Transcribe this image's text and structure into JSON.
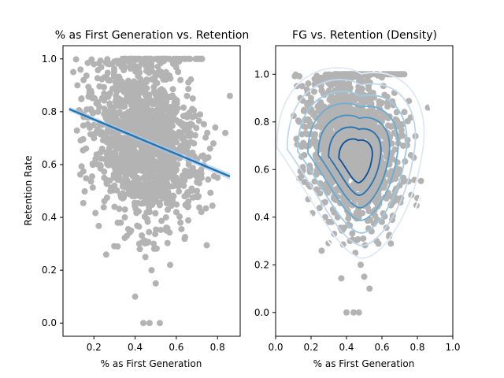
{
  "chart_data": [
    {
      "type": "scatter",
      "title": "% as First Generation vs. Retention",
      "xlabel": "% as First Generation",
      "ylabel": "Retention Rate",
      "xlim": [
        0.05,
        0.91
      ],
      "ylim": [
        -0.05,
        1.05
      ],
      "xticks": [
        "0.2",
        "0.4",
        "0.6",
        "0.8"
      ],
      "xtick_values": [
        0.2,
        0.4,
        0.6,
        0.8
      ],
      "yticks": [
        "0.0",
        "0.2",
        "0.4",
        "0.6",
        "0.8",
        "1.0"
      ],
      "ytick_values": [
        0.0,
        0.2,
        0.4,
        0.6,
        0.8,
        1.0
      ],
      "point_color": "#b3b3b3",
      "line_color": "#1f77b4",
      "grid": false,
      "regression_line": {
        "x": [
          0.08,
          0.86
        ],
        "y": [
          0.81,
          0.555
        ]
      },
      "points": {
        "x": [
          0.1,
          0.12,
          0.14,
          0.15,
          0.18,
          0.2,
          0.22,
          0.24,
          0.25,
          0.28,
          0.3,
          0.32,
          0.34,
          0.35,
          0.38,
          0.4,
          0.42,
          0.44,
          0.45,
          0.46,
          0.48,
          0.5,
          0.52,
          0.54,
          0.55,
          0.58,
          0.6,
          0.62,
          0.64,
          0.65,
          0.68,
          0.7,
          0.72,
          0.75,
          0.78,
          0.8,
          0.86,
          0.35,
          0.38,
          0.42,
          0.45,
          0.48,
          0.5,
          0.4,
          0.44,
          0.47,
          0.52,
          0.3,
          0.33,
          0.36,
          0.22,
          0.25,
          0.28,
          0.55,
          0.6,
          0.62,
          0.42,
          0.46,
          0.5,
          0.53,
          0.38,
          0.4,
          0.45,
          0.5,
          0.55,
          0.2,
          0.24,
          0.3,
          0.34,
          0.15,
          0.18,
          0.58,
          0.62,
          0.66,
          0.7,
          0.26,
          0.32,
          0.48,
          0.52,
          0.44,
          0.36,
          0.4,
          0.56,
          0.6,
          0.64,
          0.5,
          0.47,
          0.43,
          0.39,
          0.3,
          0.27,
          0.33,
          0.41,
          0.49,
          0.57
        ],
        "y": [
          0.95,
          0.9,
          0.85,
          0.92,
          0.88,
          0.98,
          0.8,
          0.75,
          0.93,
          0.82,
          0.7,
          0.85,
          0.78,
          1.0,
          0.72,
          0.65,
          0.6,
          0.55,
          0.68,
          0.5,
          0.62,
          0.58,
          0.45,
          0.52,
          0.6,
          0.7,
          0.55,
          0.65,
          0.48,
          0.75,
          0.85,
          0.62,
          0.58,
          0.72,
          0.68,
          0.55,
          0.86,
          0.4,
          0.35,
          0.3,
          0.25,
          0.2,
          0.15,
          0.1,
          0.0,
          0.0,
          0.0,
          0.44,
          0.38,
          0.33,
          0.6,
          0.55,
          0.5,
          0.4,
          0.42,
          0.38,
          0.82,
          0.76,
          0.7,
          0.66,
          0.9,
          0.96,
          0.98,
          1.0,
          0.95,
          0.7,
          0.66,
          0.62,
          0.58,
          0.78,
          0.74,
          0.8,
          0.92,
          0.6,
          0.5,
          0.86,
          0.9,
          0.84,
          0.88,
          0.72,
          0.68,
          0.64,
          0.62,
          0.58,
          0.54,
          0.46,
          0.42,
          0.48,
          0.56,
          0.52,
          0.76,
          0.66,
          0.58,
          0.3,
          0.22
        ]
      }
    },
    {
      "type": "scatter",
      "title": "FG vs. Retention (Density)",
      "xlabel": "% as First Generation",
      "ylabel": "",
      "xlim": [
        0.0,
        1.0
      ],
      "ylim": [
        -0.1,
        1.12
      ],
      "xticks": [
        "0.0",
        "0.2",
        "0.4",
        "0.6",
        "0.8",
        "1.0"
      ],
      "xtick_values": [
        0.0,
        0.2,
        0.4,
        0.6,
        0.8,
        1.0
      ],
      "yticks": [
        "0.0",
        "0.2",
        "0.4",
        "0.6",
        "0.8",
        "1.0"
      ],
      "ytick_values": [
        0.0,
        0.2,
        0.4,
        0.6,
        0.8,
        1.0
      ],
      "point_color": "#b3b3b3",
      "contour_colors": [
        "#ffffff",
        "#ddeaf6",
        "#c2d8ed",
        "#9ecae1",
        "#6baed6",
        "#4292c6",
        "#2171b5",
        "#08519c"
      ],
      "grid": false,
      "density_center": {
        "x": 0.46,
        "y": 0.64
      },
      "points": {
        "x": [
          0.12,
          0.14,
          0.16,
          0.18,
          0.2,
          0.22,
          0.25,
          0.28,
          0.3,
          0.32,
          0.35,
          0.38,
          0.4,
          0.42,
          0.45,
          0.48,
          0.5,
          0.52,
          0.55,
          0.58,
          0.6,
          0.62,
          0.65,
          0.68,
          0.7,
          0.72,
          0.75,
          0.78,
          0.8,
          0.86,
          0.35,
          0.38,
          0.42,
          0.45,
          0.48,
          0.5,
          0.53,
          0.4,
          0.44,
          0.47,
          0.52,
          0.3,
          0.33,
          0.36,
          0.22,
          0.25,
          0.28,
          0.55,
          0.6,
          0.62,
          0.42,
          0.46,
          0.5,
          0.2,
          0.24,
          0.3,
          0.34,
          0.15,
          0.18,
          0.58,
          0.62,
          0.66,
          0.7,
          0.26,
          0.32,
          0.48,
          0.52,
          0.44,
          0.36,
          0.4,
          0.56,
          0.6,
          0.64,
          0.5,
          0.47,
          0.43,
          0.39,
          0.3,
          0.27,
          0.33,
          0.41,
          0.49,
          0.57
        ],
        "y": [
          0.95,
          0.9,
          0.85,
          0.92,
          0.88,
          0.98,
          0.8,
          0.75,
          0.93,
          0.82,
          0.7,
          0.85,
          0.78,
          1.0,
          0.72,
          0.65,
          0.6,
          0.55,
          0.68,
          0.5,
          0.62,
          0.58,
          0.45,
          0.52,
          0.6,
          0.7,
          0.55,
          0.65,
          0.48,
          0.86,
          0.4,
          0.35,
          0.3,
          0.25,
          0.2,
          0.15,
          0.1,
          0.0,
          0.0,
          0.0,
          0.44,
          0.38,
          0.33,
          0.6,
          0.55,
          0.5,
          0.4,
          0.42,
          0.38,
          0.82,
          0.76,
          0.7,
          0.66,
          0.9,
          0.96,
          0.98,
          1.0,
          0.95,
          0.7,
          0.66,
          0.62,
          0.58,
          0.78,
          0.74,
          0.8,
          0.92,
          0.6,
          0.5,
          0.86,
          0.9,
          0.84,
          0.88,
          0.72,
          0.68,
          0.64,
          0.62,
          0.58,
          0.54,
          0.46,
          0.42,
          0.48,
          0.56,
          0.3
        ]
      }
    }
  ]
}
